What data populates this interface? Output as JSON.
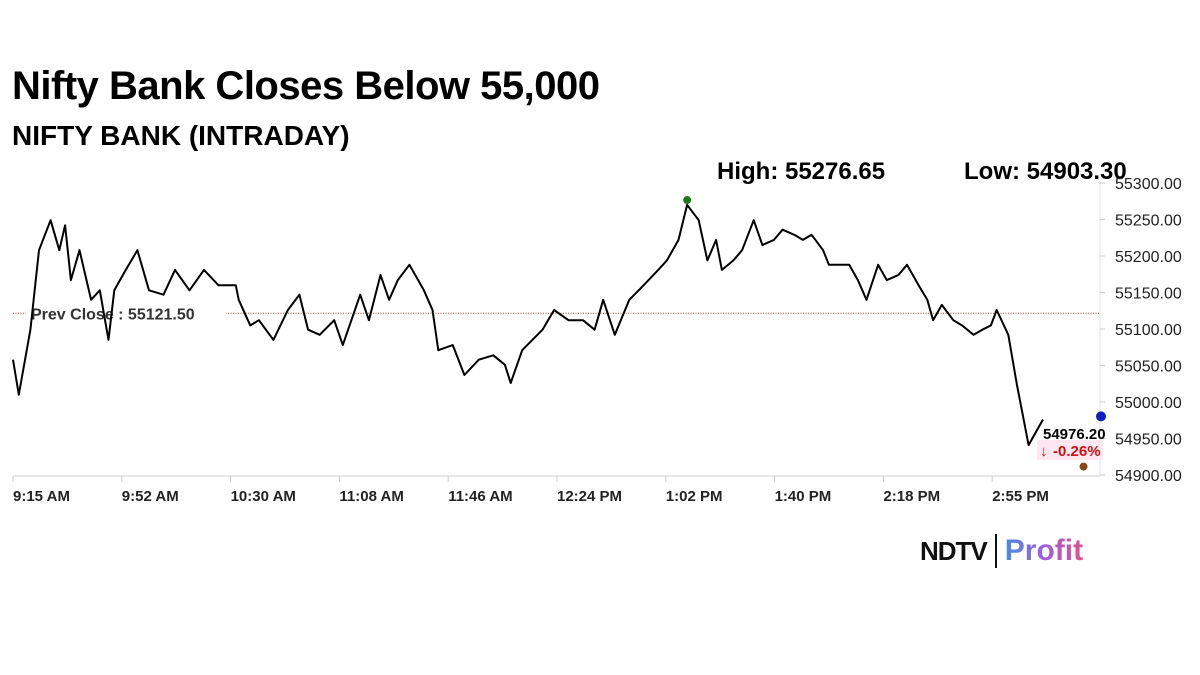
{
  "title": "Nifty Bank Closes Below 55,000",
  "subtitle": "NIFTY BANK (INTRADAY)",
  "high_label": "High: 55276.65",
  "low_label": "Low: 54903.30",
  "logo": {
    "brand": "NDTV",
    "product": "Profit"
  },
  "chart_data": {
    "type": "line",
    "title": "NIFTY BANK (INTRADAY)",
    "x_ticks": [
      "9:15 AM",
      "9:52 AM",
      "10:30 AM",
      "11:08 AM",
      "11:46 AM",
      "12:24 PM",
      "1:02 PM",
      "1:40 PM",
      "2:18 PM",
      "2:55 PM"
    ],
    "y_ticks": [
      "55300.00",
      "55250.00",
      "55200.00",
      "55150.00",
      "55100.00",
      "55050.00",
      "55000.00",
      "54950.00",
      "54900.00"
    ],
    "ylim": [
      54900,
      55300
    ],
    "xlim": [
      "09:15",
      "15:30"
    ],
    "prev_close": {
      "label": "Prev Close : 55121.50",
      "value": 55121.5
    },
    "high": {
      "time": "13:08",
      "value": 55276.65
    },
    "low": {
      "time": "15:25",
      "value": 54903.3
    },
    "last": {
      "label": "54976.20",
      "change": "-0.26%",
      "value": 54976.2
    },
    "colors": {
      "line": "#000000",
      "prev_close": "#c0392b",
      "high": "#1a7a1a",
      "last": "#1020c0",
      "low": "#8b4513",
      "change": "#d01010"
    },
    "x": [
      "09:15",
      "09:17",
      "09:21",
      "09:24",
      "09:28",
      "09:31",
      "09:33",
      "09:35",
      "09:38",
      "09:42",
      "09:45",
      "09:48",
      "09:50",
      "09:54",
      "09:58",
      "10:02",
      "10:07",
      "10:11",
      "10:16",
      "10:21",
      "10:26",
      "10:32",
      "10:33",
      "10:37",
      "10:40",
      "10:45",
      "10:50",
      "10:54",
      "10:57",
      "11:01",
      "11:06",
      "11:09",
      "11:15",
      "11:18",
      "11:22",
      "11:25",
      "11:28",
      "11:32",
      "11:37",
      "11:40",
      "11:42",
      "11:47",
      "11:51",
      "11:56",
      "12:01",
      "12:05",
      "12:07",
      "12:11",
      "12:18",
      "12:22",
      "12:27",
      "12:32",
      "12:36",
      "12:39",
      "12:43",
      "12:48",
      "12:53",
      "12:58",
      "13:01",
      "13:05",
      "13:08",
      "13:12",
      "13:15",
      "13:18",
      "13:20",
      "13:24",
      "13:27",
      "13:31",
      "13:34",
      "13:38",
      "13:41",
      "13:45",
      "13:48",
      "13:51",
      "13:55",
      "13:57",
      "14:00",
      "14:04",
      "14:07",
      "14:10",
      "14:14",
      "14:17",
      "14:21",
      "14:24",
      "14:28",
      "14:31",
      "14:33",
      "14:36",
      "14:40",
      "14:43",
      "14:47",
      "14:50",
      "14:53",
      "14:55",
      "14:59",
      "15:02",
      "15:04",
      "15:06",
      "15:09",
      "15:11"
    ],
    "y": [
      55058,
      55010,
      55099,
      55208,
      55249,
      55208,
      55242,
      55167,
      55208,
      55140,
      55153,
      55085,
      55153,
      55181,
      55208,
      55153,
      55147,
      55181,
      55153,
      55181,
      55160,
      55160,
      55140,
      55105,
      55112,
      55085,
      55126,
      55147,
      55099,
      55092,
      55112,
      55078,
      55147,
      55112,
      55174,
      55140,
      55167,
      55188,
      55153,
      55126,
      55071,
      55078,
      55037,
      55058,
      55064,
      55051,
      55026,
      55071,
      55099,
      55126,
      55112,
      55112,
      55099,
      55140,
      55092,
      55140,
      55160,
      55181,
      55194,
      55222,
      55270,
      55249,
      55194,
      55222,
      55181,
      55194,
      55208,
      55249,
      55215,
      55222,
      55236,
      55229,
      55222,
      55229,
      55208,
      55188,
      55188,
      55188,
      55167,
      55140,
      55188,
      55167,
      55174,
      55188,
      55160,
      55140,
      55112,
      55133,
      55112,
      55105,
      55092,
      55099,
      55105,
      55126,
      55092,
      55023,
      54982,
      54941,
      54962,
      54976
    ]
  }
}
